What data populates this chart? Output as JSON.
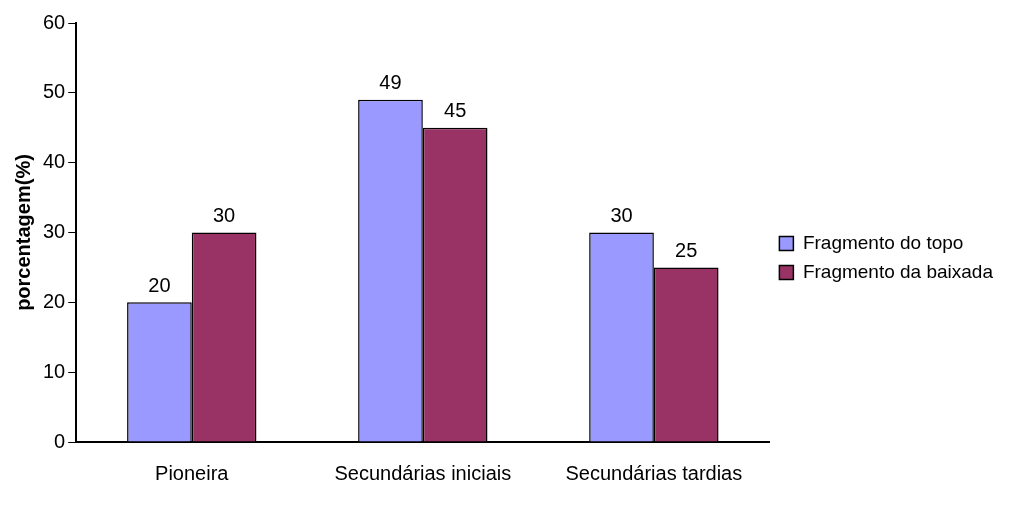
{
  "chart_data": {
    "type": "bar",
    "ylabel": "porcentagem(%)",
    "categories": [
      "Pioneira",
      "Secundárias iniciais",
      "Secundárias tardias"
    ],
    "series": [
      {
        "name": "Fragmento do topo",
        "color": "#9999ff",
        "values": [
          20,
          49,
          30
        ]
      },
      {
        "name": "Fragmento da baixada",
        "color": "#993366",
        "values": [
          30,
          45,
          25
        ]
      }
    ],
    "ylim": [
      0,
      60
    ],
    "yticks": [
      0,
      10,
      20,
      30,
      40,
      50,
      60
    ],
    "grid": false,
    "legend": "right",
    "data_labels": true
  }
}
